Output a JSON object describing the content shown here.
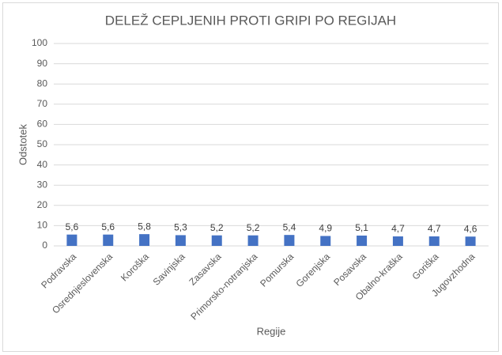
{
  "chart_data": {
    "type": "bar",
    "title": "DELEŽ CEPLJENIH PROTI GRIPI PO REGIJAH",
    "x_label": "Regije",
    "y_label": "Odstotek",
    "categories": [
      "Podravska",
      "Osrednjeslovenska",
      "Koroška",
      "Savinjska",
      "Zasavska",
      "Primorsko-notranjska",
      "Pomurska",
      "Gorenjska",
      "Posavska",
      "Obalno-kraška",
      "Goriška",
      "Jugovzhodna"
    ],
    "values": [
      5.6,
      5.6,
      5.8,
      5.3,
      5.2,
      5.2,
      5.4,
      4.9,
      5.1,
      4.7,
      4.7,
      4.6
    ],
    "value_labels": [
      "5,6",
      "5,6",
      "5,8",
      "5,3",
      "5,2",
      "5,2",
      "5,4",
      "4,9",
      "5,1",
      "4,7",
      "4,7",
      "4,6"
    ],
    "color": "#4472c4",
    "ylim": [
      0,
      100
    ],
    "yticks": [
      0,
      10,
      20,
      30,
      40,
      50,
      60,
      70,
      80,
      90,
      100
    ],
    "grid": true
  }
}
